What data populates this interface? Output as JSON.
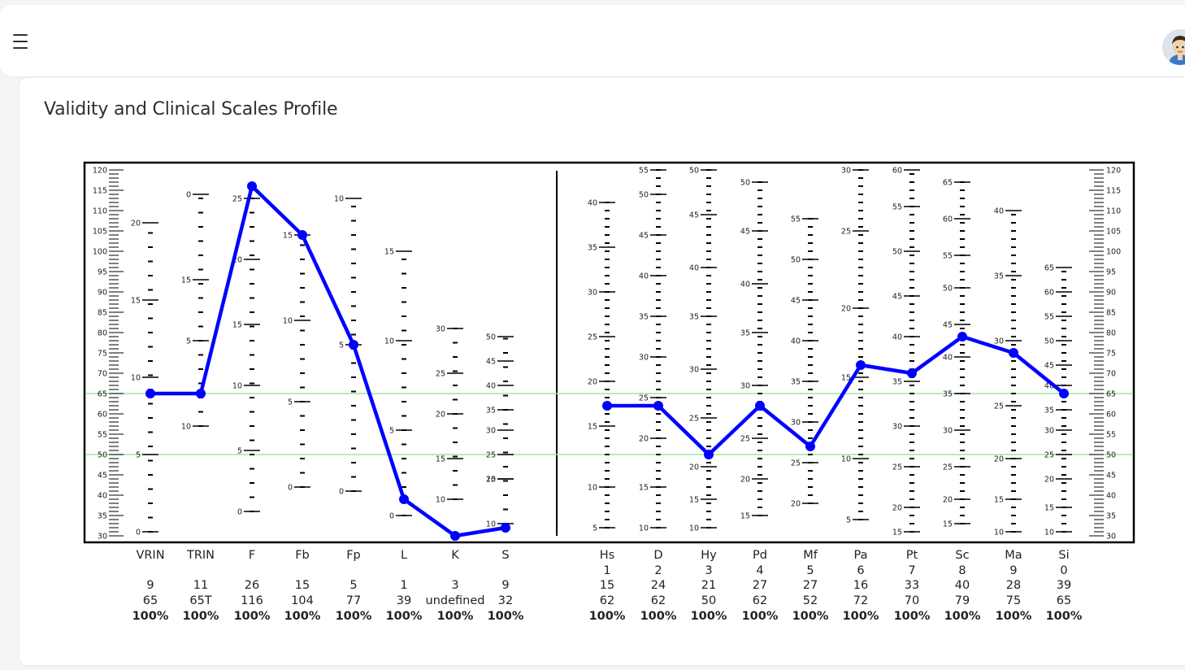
{
  "header": {
    "menu_icon": "hamburger-menu-icon",
    "avatar_icon": "user-avatar-icon"
  },
  "card": {
    "title": "Validity and Clinical Scales Profile"
  },
  "chart_data": {
    "type": "line",
    "ylim": [
      30,
      120
    ],
    "left_axis_ticks": [
      30,
      35,
      40,
      45,
      50,
      55,
      60,
      65,
      70,
      75,
      80,
      85,
      90,
      95,
      100,
      105,
      110,
      115,
      120
    ],
    "reference_lines": [
      50,
      65
    ],
    "reference_line_color": "#9be89b",
    "series_color": "#0000ff",
    "groups": [
      {
        "name": "validity",
        "scales": [
          {
            "label": "VRIN",
            "number": "",
            "raw": "9",
            "t": "65",
            "pct": "100%",
            "t_value": 65,
            "raw_ticks": [
              {
                "raw": 0,
                "t": 31
              },
              {
                "raw": 5,
                "t": 50
              },
              {
                "raw": 10,
                "t": 69
              },
              {
                "raw": 15,
                "t": 88
              },
              {
                "raw": 20,
                "t": 107
              }
            ]
          },
          {
            "label": "TRIN",
            "number": "",
            "raw": "11",
            "t": "65T",
            "pct": "100%",
            "t_value": 65,
            "raw_ticks": [
              {
                "raw": 10,
                "t": 57
              },
              {
                "raw": 5,
                "t": 78
              },
              {
                "raw": 15,
                "t": 93
              },
              {
                "raw": 0,
                "t": 114
              }
            ]
          },
          {
            "label": "F",
            "number": "",
            "raw": "26",
            "t": "116",
            "pct": "100%",
            "t_value": 116,
            "raw_ticks": [
              {
                "raw": 0,
                "t": 36
              },
              {
                "raw": 5,
                "t": 51
              },
              {
                "raw": 10,
                "t": 67
              },
              {
                "raw": 15,
                "t": 82
              },
              {
                "raw": 20,
                "t": 98
              },
              {
                "raw": 25,
                "t": 113
              }
            ]
          },
          {
            "label": "Fb",
            "number": "",
            "raw": "15",
            "t": "104",
            "pct": "100%",
            "t_value": 104,
            "raw_ticks": [
              {
                "raw": 0,
                "t": 42
              },
              {
                "raw": 5,
                "t": 63
              },
              {
                "raw": 10,
                "t": 83
              },
              {
                "raw": 15,
                "t": 104
              }
            ]
          },
          {
            "label": "Fp",
            "number": "",
            "raw": "5",
            "t": "77",
            "pct": "100%",
            "t_value": 77,
            "raw_ticks": [
              {
                "raw": 0,
                "t": 41
              },
              {
                "raw": 5,
                "t": 77
              },
              {
                "raw": 10,
                "t": 113
              }
            ]
          },
          {
            "label": "L",
            "number": "",
            "raw": "1",
            "t": "39",
            "pct": "100%",
            "t_value": 39,
            "raw_ticks": [
              {
                "raw": 0,
                "t": 35
              },
              {
                "raw": 5,
                "t": 56
              },
              {
                "raw": 10,
                "t": 78
              },
              {
                "raw": 15,
                "t": 100
              }
            ]
          },
          {
            "label": "K",
            "number": "",
            "raw": "3",
            "t": "undefined",
            "pct": "100%",
            "t_value": 30,
            "raw_ticks": [
              {
                "raw": 10,
                "t": 39
              },
              {
                "raw": 15,
                "t": 49
              },
              {
                "raw": 20,
                "t": 60
              },
              {
                "raw": 25,
                "t": 70
              },
              {
                "raw": 30,
                "t": 81
              }
            ]
          },
          {
            "label": "S",
            "number": "",
            "raw": "9",
            "t": "32",
            "pct": "100%",
            "t_value": 32,
            "raw_ticks": [
              {
                "raw": 10,
                "t": 33
              },
              {
                "raw": 15,
                "t": 44
              },
              {
                "raw": 20,
                "t": 44
              },
              {
                "raw": 25,
                "t": 50
              },
              {
                "raw": 30,
                "t": 56
              },
              {
                "raw": 35,
                "t": 61
              },
              {
                "raw": 40,
                "t": 67
              },
              {
                "raw": 45,
                "t": 73
              },
              {
                "raw": 50,
                "t": 79
              }
            ]
          }
        ]
      },
      {
        "name": "clinical",
        "scales": [
          {
            "label": "Hs",
            "number": "1",
            "raw": "15",
            "t": "62",
            "pct": "100%",
            "t_value": 62,
            "raw_ticks": [
              {
                "raw": 5,
                "t": 32
              },
              {
                "raw": 10,
                "t": 42
              },
              {
                "raw": 15,
                "t": 57
              },
              {
                "raw": 20,
                "t": 68
              },
              {
                "raw": 25,
                "t": 79
              },
              {
                "raw": 30,
                "t": 90
              },
              {
                "raw": 35,
                "t": 101
              },
              {
                "raw": 40,
                "t": 112
              }
            ]
          },
          {
            "label": "D",
            "number": "2",
            "raw": "24",
            "t": "62",
            "pct": "100%",
            "t_value": 62,
            "raw_ticks": [
              {
                "raw": 10,
                "t": 32
              },
              {
                "raw": 15,
                "t": 42
              },
              {
                "raw": 20,
                "t": 54
              },
              {
                "raw": 25,
                "t": 64
              },
              {
                "raw": 30,
                "t": 74
              },
              {
                "raw": 35,
                "t": 84
              },
              {
                "raw": 40,
                "t": 94
              },
              {
                "raw": 45,
                "t": 104
              },
              {
                "raw": 50,
                "t": 114
              },
              {
                "raw": 55,
                "t": 120
              }
            ]
          },
          {
            "label": "Hy",
            "number": "3",
            "raw": "21",
            "t": "50",
            "pct": "100%",
            "t_value": 50,
            "raw_ticks": [
              {
                "raw": 10,
                "t": 32
              },
              {
                "raw": 15,
                "t": 39
              },
              {
                "raw": 20,
                "t": 47
              },
              {
                "raw": 25,
                "t": 59
              },
              {
                "raw": 30,
                "t": 71
              },
              {
                "raw": 35,
                "t": 84
              },
              {
                "raw": 40,
                "t": 96
              },
              {
                "raw": 45,
                "t": 109
              },
              {
                "raw": 50,
                "t": 120
              }
            ]
          },
          {
            "label": "Pd",
            "number": "4",
            "raw": "27",
            "t": "62",
            "pct": "100%",
            "t_value": 62,
            "raw_ticks": [
              {
                "raw": 15,
                "t": 35
              },
              {
                "raw": 20,
                "t": 44
              },
              {
                "raw": 25,
                "t": 54
              },
              {
                "raw": 30,
                "t": 67
              },
              {
                "raw": 35,
                "t": 80
              },
              {
                "raw": 40,
                "t": 92
              },
              {
                "raw": 45,
                "t": 105
              },
              {
                "raw": 50,
                "t": 117
              }
            ]
          },
          {
            "label": "Mf",
            "number": "5",
            "raw": "27",
            "t": "52",
            "pct": "100%",
            "t_value": 52,
            "raw_ticks": [
              {
                "raw": 20,
                "t": 38
              },
              {
                "raw": 25,
                "t": 48
              },
              {
                "raw": 30,
                "t": 58
              },
              {
                "raw": 35,
                "t": 68
              },
              {
                "raw": 40,
                "t": 78
              },
              {
                "raw": 45,
                "t": 88
              },
              {
                "raw": 50,
                "t": 98
              },
              {
                "raw": 55,
                "t": 108
              }
            ]
          },
          {
            "label": "Pa",
            "number": "6",
            "raw": "16",
            "t": "72",
            "pct": "100%",
            "t_value": 72,
            "raw_ticks": [
              {
                "raw": 5,
                "t": 34
              },
              {
                "raw": 10,
                "t": 49
              },
              {
                "raw": 15,
                "t": 69
              },
              {
                "raw": 20,
                "t": 86
              },
              {
                "raw": 25,
                "t": 105
              },
              {
                "raw": 30,
                "t": 120
              }
            ]
          },
          {
            "label": "Pt",
            "number": "7",
            "raw": "33",
            "t": "70",
            "pct": "100%",
            "t_value": 70,
            "raw_ticks": [
              {
                "raw": 15,
                "t": 31
              },
              {
                "raw": 20,
                "t": 37
              },
              {
                "raw": 25,
                "t": 47
              },
              {
                "raw": 30,
                "t": 57
              },
              {
                "raw": 35,
                "t": 68
              },
              {
                "raw": 40,
                "t": 79
              },
              {
                "raw": 45,
                "t": 89
              },
              {
                "raw": 50,
                "t": 100
              },
              {
                "raw": 55,
                "t": 111
              },
              {
                "raw": 60,
                "t": 120
              }
            ]
          },
          {
            "label": "Sc",
            "number": "8",
            "raw": "40",
            "t": "79",
            "pct": "100%",
            "t_value": 79,
            "raw_ticks": [
              {
                "raw": 15,
                "t": 33
              },
              {
                "raw": 20,
                "t": 39
              },
              {
                "raw": 25,
                "t": 47
              },
              {
                "raw": 30,
                "t": 56
              },
              {
                "raw": 35,
                "t": 65
              },
              {
                "raw": 40,
                "t": 74
              },
              {
                "raw": 45,
                "t": 82
              },
              {
                "raw": 50,
                "t": 91
              },
              {
                "raw": 55,
                "t": 99
              },
              {
                "raw": 60,
                "t": 108
              },
              {
                "raw": 65,
                "t": 117
              }
            ]
          },
          {
            "label": "Ma",
            "number": "9",
            "raw": "28",
            "t": "75",
            "pct": "100%",
            "t_value": 75,
            "raw_ticks": [
              {
                "raw": 10,
                "t": 31
              },
              {
                "raw": 15,
                "t": 39
              },
              {
                "raw": 20,
                "t": 49
              },
              {
                "raw": 25,
                "t": 62
              },
              {
                "raw": 30,
                "t": 78
              },
              {
                "raw": 35,
                "t": 94
              },
              {
                "raw": 40,
                "t": 110
              }
            ]
          },
          {
            "label": "Si",
            "number": "0",
            "raw": "39",
            "t": "65",
            "pct": "100%",
            "t_value": 65,
            "raw_ticks": [
              {
                "raw": 10,
                "t": 31
              },
              {
                "raw": 15,
                "t": 37
              },
              {
                "raw": 20,
                "t": 44
              },
              {
                "raw": 25,
                "t": 50
              },
              {
                "raw": 30,
                "t": 56
              },
              {
                "raw": 35,
                "t": 61
              },
              {
                "raw": 40,
                "t": 67
              },
              {
                "raw": 45,
                "t": 72
              },
              {
                "raw": 50,
                "t": 78
              },
              {
                "raw": 55,
                "t": 84
              },
              {
                "raw": 60,
                "t": 90
              },
              {
                "raw": 65,
                "t": 96
              }
            ]
          }
        ]
      }
    ]
  }
}
